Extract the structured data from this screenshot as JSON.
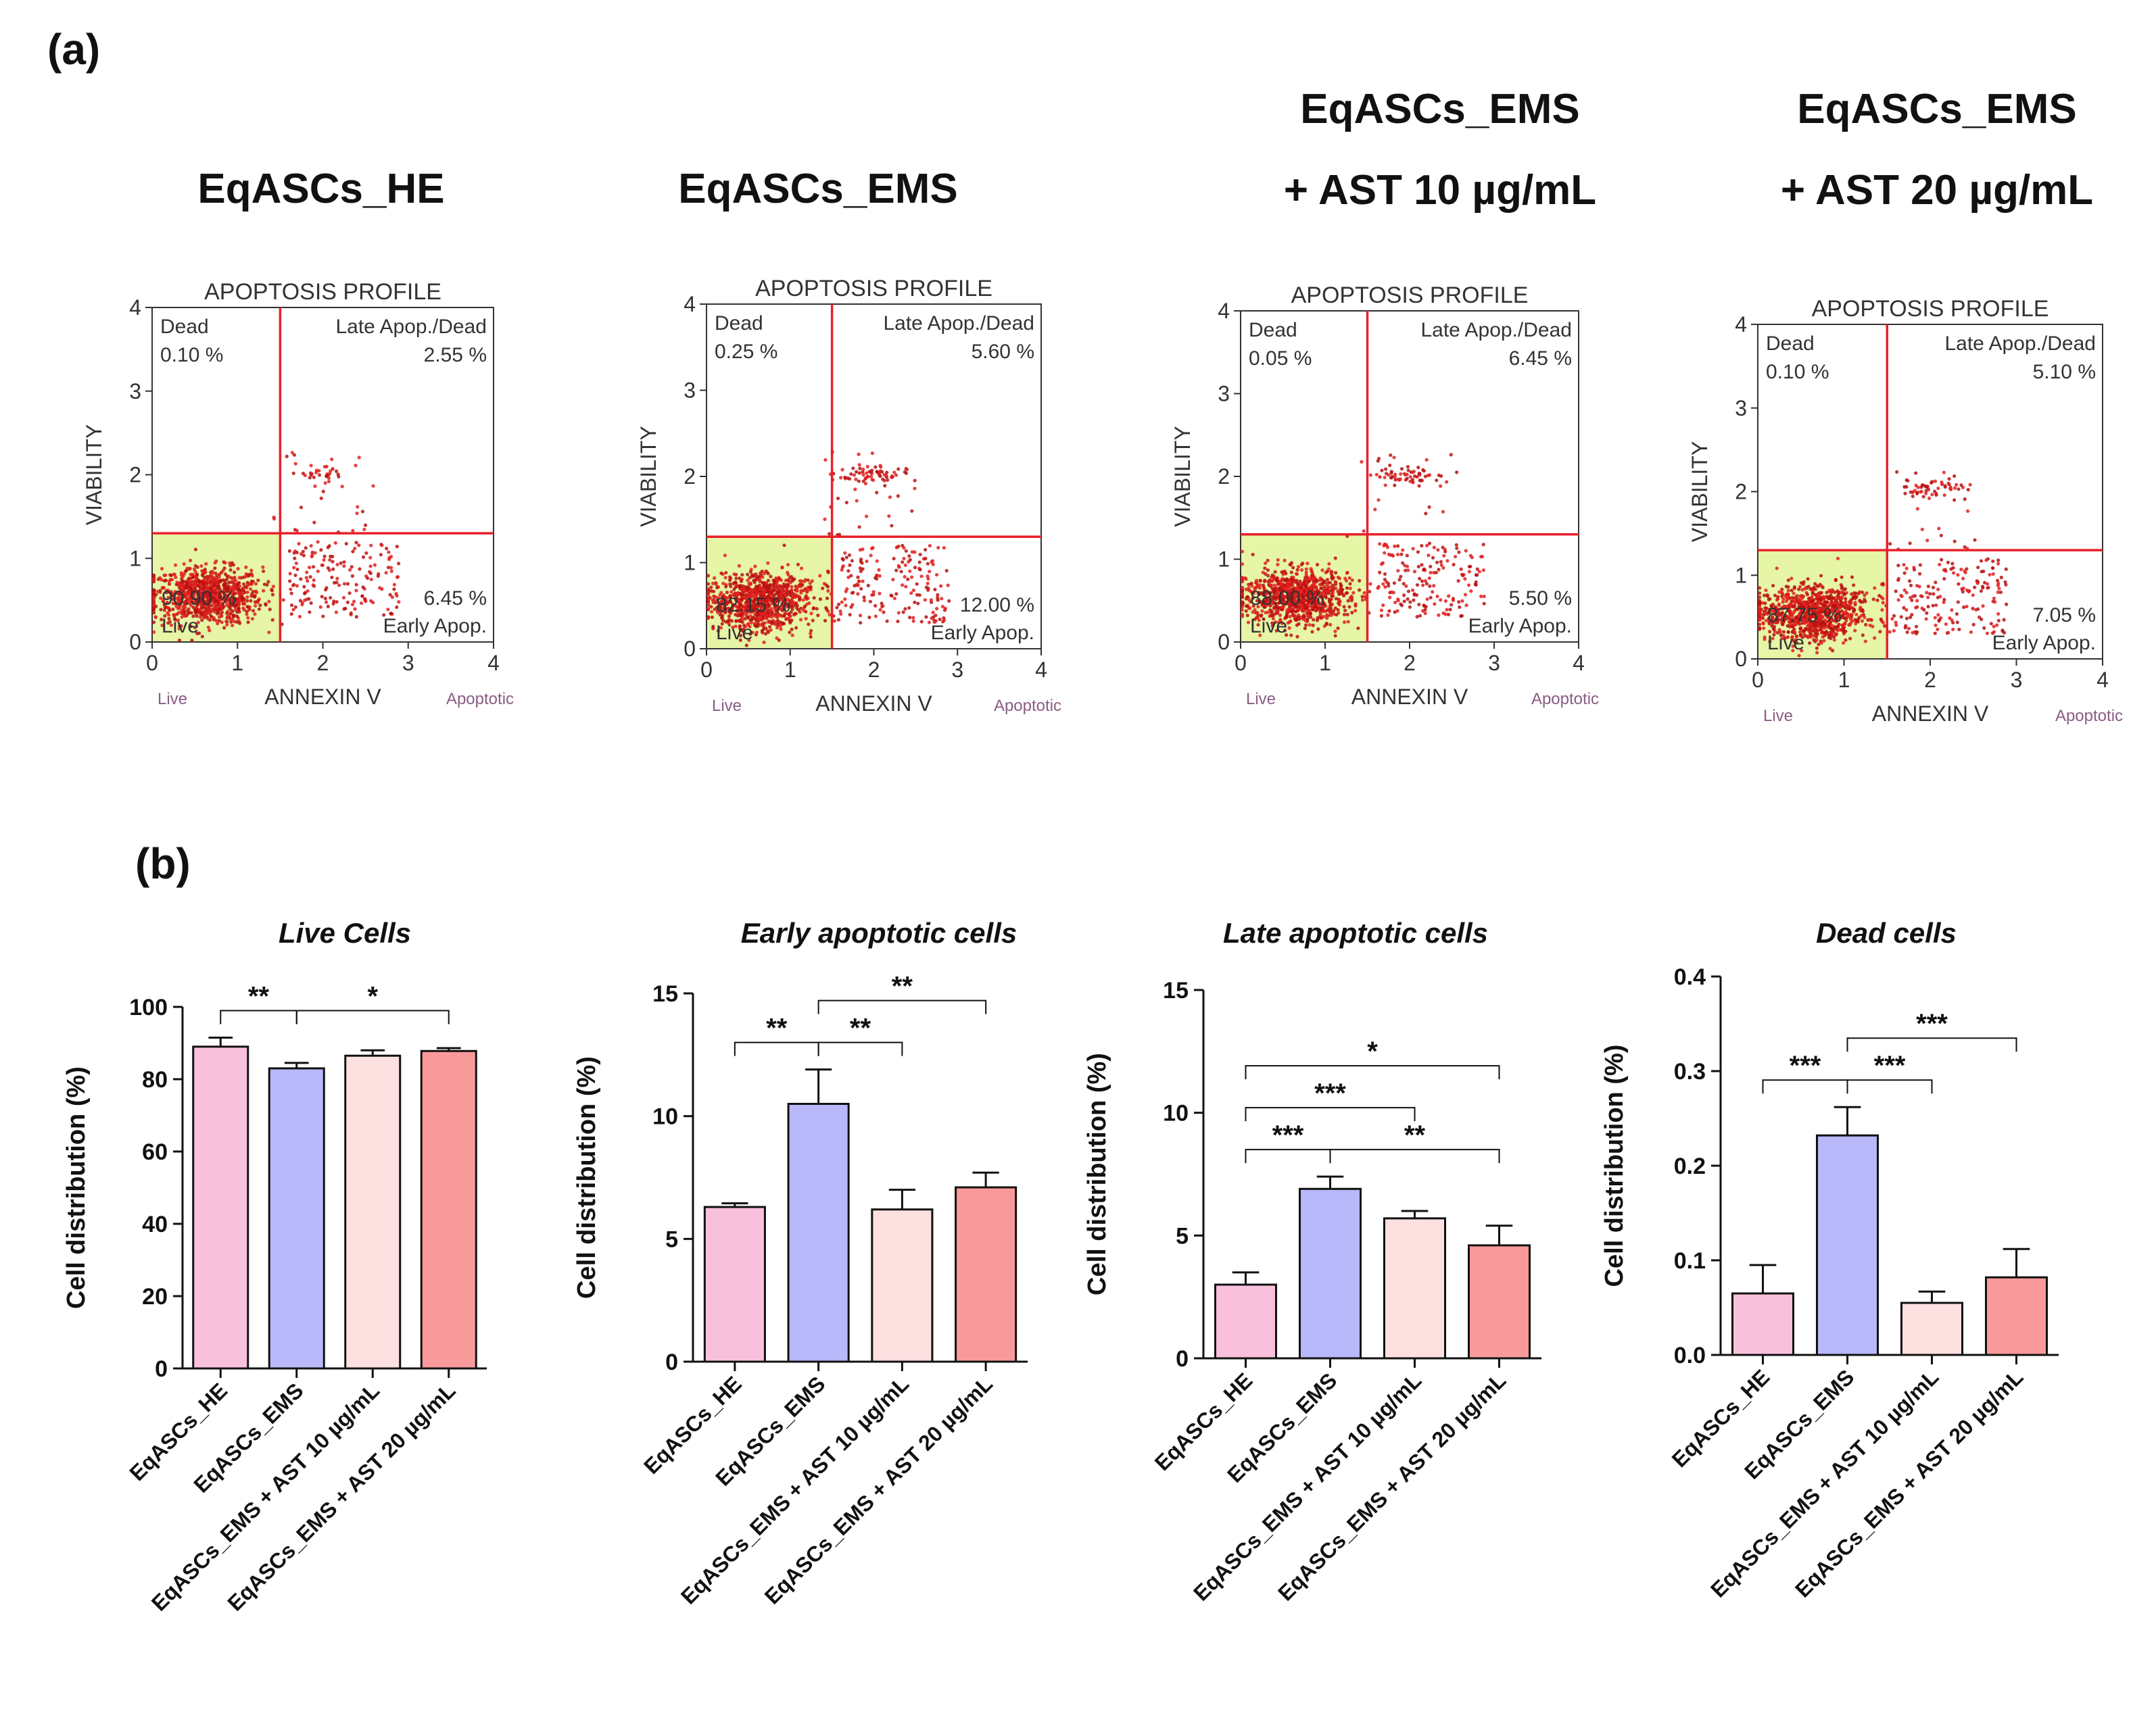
{
  "panel_a_label": "(a)",
  "panel_b_label": "(b)",
  "flow_panels": [
    {
      "title_lines": [
        "EqASCs_HE"
      ],
      "plot_title": "APOPTOSIS PROFILE",
      "quadrants": {
        "dead": "0.10 %",
        "late": "2.55 %",
        "early": "6.45 %",
        "live": "90.90 %"
      },
      "cluster": {
        "late_density": 0.35
      }
    },
    {
      "title_lines": [
        "EqASCs_EMS"
      ],
      "plot_title": "APOPTOSIS PROFILE",
      "quadrants": {
        "dead": "0.25 %",
        "late": "5.60 %",
        "early": "12.00 %",
        "live": "82.15 %"
      },
      "cluster": {
        "late_density": 0.8
      }
    },
    {
      "title_lines": [
        "EqASCs_EMS",
        "+ AST 10 µg/mL"
      ],
      "plot_title": "APOPTOSIS PROFILE",
      "quadrants": {
        "dead": "0.05 %",
        "late": "6.45 %",
        "early": "5.50 %",
        "live": "88.00 %"
      },
      "cluster": {
        "late_density": 0.6
      }
    },
    {
      "title_lines": [
        "EqASCs_EMS",
        "+ AST 20 µg/mL"
      ],
      "plot_title": "APOPTOSIS PROFILE",
      "quadrants": {
        "dead": "0.10 %",
        "late": "5.10 %",
        "early": "7.05 %",
        "live": "87.75 %"
      },
      "cluster": {
        "late_density": 0.6
      }
    }
  ],
  "flow_common": {
    "quadrant_labels": {
      "dead": "Dead",
      "late": "Late Apop./Dead",
      "early": "Early Apop.",
      "live": "Live"
    },
    "x_axis_label": "ANNEXIN V",
    "x_left_note": "Live",
    "x_right_note": "Apoptotic",
    "y_axis_label": "VIABILITY",
    "ticks": [
      "0",
      "1",
      "2",
      "3",
      "4"
    ]
  },
  "chart_data": [
    {
      "type": "bar",
      "title": "Live Cells",
      "ylabel": "Cell distribution (%)",
      "categories": [
        "EqASCs_HE",
        "EqASCs_EMS",
        "EqASCs_EMS + AST 10 µg/mL",
        "EqASCs_EMS + AST 20 µg/mL"
      ],
      "values": [
        89,
        83,
        86.5,
        87.8
      ],
      "errors": [
        2.5,
        1.5,
        1.5,
        0.8
      ],
      "ylim": [
        0,
        100
      ],
      "yticks": [
        0,
        20,
        40,
        60,
        80,
        100
      ],
      "ytick_labels": [
        "0",
        "20",
        "40",
        "60",
        "80",
        "100"
      ],
      "significance": [
        {
          "a": 0,
          "b": 1,
          "label": "**",
          "level": 0
        },
        {
          "a": 1,
          "b": 3,
          "label": "*",
          "level": 0
        }
      ]
    },
    {
      "type": "bar",
      "title": "Early apoptotic cells",
      "ylabel": "Cell distribution (%)",
      "categories": [
        "EqASCs_HE",
        "EqASCs_EMS",
        "EqASCs_EMS + AST 10 µg/mL",
        "EqASCs_EMS + AST 20 µg/mL"
      ],
      "values": [
        6.3,
        10.5,
        6.2,
        7.1
      ],
      "errors": [
        0.15,
        1.4,
        0.8,
        0.6
      ],
      "ylim": [
        0,
        15
      ],
      "yticks": [
        0,
        5,
        10,
        15
      ],
      "ytick_labels": [
        "0",
        "5",
        "10",
        "15"
      ],
      "significance": [
        {
          "a": 0,
          "b": 1,
          "label": "**",
          "level": 0
        },
        {
          "a": 1,
          "b": 2,
          "label": "**",
          "level": 0
        },
        {
          "a": 1,
          "b": 3,
          "label": "**",
          "level": 1
        }
      ]
    },
    {
      "type": "bar",
      "title": "Late apoptotic cells",
      "ylabel": "Cell distribution (%)",
      "categories": [
        "EqASCs_HE",
        "EqASCs_EMS",
        "EqASCs_EMS + AST 10 µg/mL",
        "EqASCs_EMS + AST 20 µg/mL"
      ],
      "values": [
        3.0,
        6.9,
        5.7,
        4.6
      ],
      "errors": [
        0.5,
        0.5,
        0.3,
        0.8
      ],
      "ylim": [
        0,
        15
      ],
      "yticks": [
        0,
        5,
        10,
        15
      ],
      "ytick_labels": [
        "0",
        "5",
        "10",
        "15"
      ],
      "significance": [
        {
          "a": 0,
          "b": 1,
          "label": "***",
          "level": 0
        },
        {
          "a": 1,
          "b": 3,
          "label": "**",
          "level": 0
        },
        {
          "a": 0,
          "b": 2,
          "label": "***",
          "level": 1
        },
        {
          "a": 0,
          "b": 3,
          "label": "*",
          "level": 2
        }
      ]
    },
    {
      "type": "bar",
      "title": "Dead cells",
      "ylabel": "Cell distribution (%)",
      "categories": [
        "EqASCs_HE",
        "EqASCs_EMS",
        "EqASCs_EMS + AST 10 µg/mL",
        "EqASCs_EMS + AST 20 µg/mL"
      ],
      "values": [
        0.065,
        0.232,
        0.055,
        0.082
      ],
      "errors": [
        0.03,
        0.03,
        0.012,
        0.03
      ],
      "ylim": [
        0,
        0.4
      ],
      "yticks": [
        0,
        0.1,
        0.2,
        0.3,
        0.4
      ],
      "ytick_labels": [
        "0.0",
        "0.1",
        "0.2",
        "0.3",
        "0.4"
      ],
      "significance": [
        {
          "a": 0,
          "b": 1,
          "label": "***",
          "level": 0
        },
        {
          "a": 1,
          "b": 2,
          "label": "***",
          "level": 0
        },
        {
          "a": 1,
          "b": 3,
          "label": "***",
          "level": 1
        }
      ]
    }
  ],
  "bar_colors": [
    "#f9c0dc",
    "#b8b8fa",
    "#fde0e0",
    "#f99a9a"
  ]
}
